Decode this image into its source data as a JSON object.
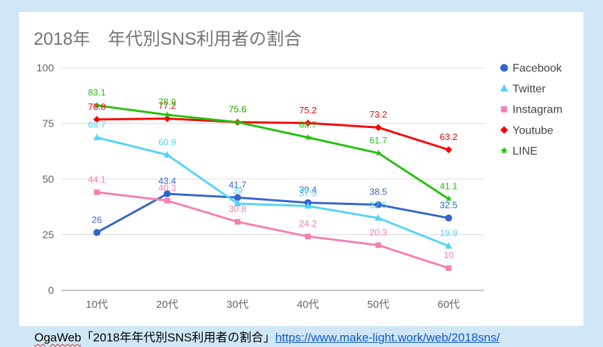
{
  "chart_data": {
    "type": "line",
    "title": "2018年　年代別SNS利用者の割合",
    "categories": [
      "10代",
      "20代",
      "30代",
      "40代",
      "50代",
      "60代"
    ],
    "ylim": [
      0,
      100
    ],
    "y_ticks": [
      0,
      25,
      50,
      75,
      100
    ],
    "grid": true,
    "legend_position": "right",
    "data_labels": true,
    "series": [
      {
        "name": "Facebook",
        "color": "#3366cc",
        "marker": "circle",
        "values": [
          26,
          43.4,
          41.7,
          39.4,
          38.5,
          32.5
        ]
      },
      {
        "name": "Twitter",
        "color": "#53d3fb",
        "marker": "triangle",
        "values": [
          68.7,
          60.9,
          39,
          37.9,
          32.5,
          19.9
        ]
      },
      {
        "name": "Instagram",
        "color": "#f77fb0",
        "marker": "square",
        "values": [
          44.1,
          40.3,
          30.8,
          24.2,
          20.3,
          10
        ]
      },
      {
        "name": "Youtube",
        "color": "#ff0000",
        "marker": "diamond",
        "values": [
          76.8,
          77.2,
          75.6,
          75.2,
          73.2,
          63.2
        ]
      },
      {
        "name": "LINE",
        "color": "#22c20b",
        "marker": "star",
        "values": [
          83.1,
          78.9,
          75.6,
          68.7,
          61.7,
          41.1
        ]
      }
    ]
  },
  "caption": {
    "source": "OgaWeb",
    "title": "「2018年年代別SNS利用者の割合」",
    "url": "https://www.make-light.work/web/2018sns/"
  }
}
